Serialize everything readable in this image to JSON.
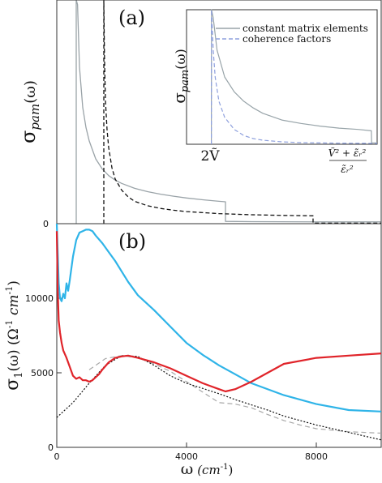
{
  "colors": {
    "panel_a_constant": "#9aa3a8",
    "panel_a_coherence": "#111111",
    "inset_constant": "#98a4a9",
    "inset_coherence": "#8ea0dd",
    "blue": "#2fb4e8",
    "red": "#e0242a",
    "gray_dashed": "#a8a8a8",
    "black_dotted": "#111111"
  },
  "chart_data": [
    {
      "panel": "(a)",
      "type": "line",
      "ylabel": "σpam(ω)",
      "ylabel_main": "σ",
      "ylabel_sub": "pam",
      "ylabel_arg": "(ω)",
      "yticks": [
        "0"
      ],
      "xlim": [
        0,
        10000
      ],
      "ylim": [
        0,
        1
      ],
      "series": [
        {
          "style": "solid-gray",
          "x": [
            600,
            601,
            640,
            700,
            800,
            900,
            1000,
            1200,
            1400,
            1600,
            1800,
            2000,
            2400,
            2800,
            3200,
            3600,
            4000,
            4500,
            5000,
            5200,
            5201,
            6000,
            8000,
            10000
          ],
          "y": [
            0,
            1,
            0.98,
            0.7,
            0.52,
            0.43,
            0.37,
            0.29,
            0.245,
            0.215,
            0.195,
            0.18,
            0.158,
            0.143,
            0.132,
            0.123,
            0.115,
            0.107,
            0.1,
            0.098,
            0.01,
            0.009,
            0.008,
            0.008
          ]
        },
        {
          "style": "dashed-black",
          "x": [
            1450,
            1451,
            1470,
            1500,
            1550,
            1600,
            1700,
            1800,
            2000,
            2200,
            2400,
            2800,
            3200,
            3600,
            4000,
            5000,
            6000,
            7000,
            7900,
            7901,
            10000
          ],
          "y": [
            0,
            1,
            0.75,
            0.55,
            0.42,
            0.34,
            0.25,
            0.2,
            0.15,
            0.12,
            0.1,
            0.08,
            0.068,
            0.06,
            0.054,
            0.045,
            0.04,
            0.037,
            0.035,
            0.002,
            0.002
          ]
        }
      ]
    },
    {
      "panel": "inset",
      "type": "line",
      "ylabel": "σpam(ω)",
      "ylabel_main": "σ",
      "ylabel_sub": "pam",
      "ylabel_arg": "(ω)",
      "xtick_left": "2Ṽ",
      "xtick_right_num": "Ṽ² + ε̃ᵣ²",
      "xtick_right_den": "ε̃ᵣ²",
      "legend": [
        "constant matrix elements",
        "coherence factors"
      ],
      "legend_position": "top-right",
      "xlim": [
        0,
        1
      ],
      "ylim": [
        0,
        1
      ],
      "series": [
        {
          "name": "constant matrix elements",
          "style": "solid",
          "x": [
            0.13,
            0.131,
            0.14,
            0.16,
            0.2,
            0.25,
            0.3,
            0.35,
            0.4,
            0.5,
            0.6,
            0.7,
            0.8,
            0.9,
            0.97,
            0.971,
            1.0
          ],
          "y": [
            0,
            1,
            0.94,
            0.7,
            0.5,
            0.39,
            0.32,
            0.27,
            0.23,
            0.18,
            0.155,
            0.135,
            0.12,
            0.11,
            0.1,
            0.01,
            0.01
          ]
        },
        {
          "name": "coherence factors",
          "style": "dashed",
          "x": [
            0.13,
            0.131,
            0.14,
            0.15,
            0.17,
            0.2,
            0.25,
            0.3,
            0.35,
            0.4,
            0.5,
            0.6,
            0.8,
            1.0
          ],
          "y": [
            0,
            1,
            0.7,
            0.5,
            0.32,
            0.2,
            0.11,
            0.065,
            0.042,
            0.03,
            0.018,
            0.012,
            0.008,
            0.006
          ]
        }
      ]
    },
    {
      "panel": "(b)",
      "type": "line",
      "ylabel": "σ1(ω) (Ω⁻¹ cm⁻¹)",
      "ylabel_main": "σ",
      "ylabel_sub": "1",
      "ylabel_rest": "(ω) (Ω",
      "ylabel_exp1": "-1",
      "ylabel_unit": " cm",
      "ylabel_exp2": "-1",
      "ylabel_close": ")",
      "xlabel": "ω (cm⁻¹)",
      "xlabel_main": "ω",
      "xlabel_unit": "(cm",
      "xlabel_exp": "-1",
      "xlabel_close": ")",
      "xlim": [
        0,
        10000
      ],
      "ylim": [
        0,
        15000
      ],
      "xticks": [
        0,
        4000,
        8000
      ],
      "xtick_labels": [
        "0",
        "4000",
        "8000"
      ],
      "yticks": [
        0,
        5000,
        10000
      ],
      "ytick_labels": [
        "0",
        "5000",
        "10000"
      ],
      "series": [
        {
          "style": "blue",
          "x": [
            0,
            30,
            60,
            100,
            150,
            200,
            250,
            300,
            350,
            400,
            500,
            600,
            700,
            800,
            900,
            1000,
            1100,
            1200,
            1400,
            1600,
            1800,
            2000,
            2200,
            2500,
            3000,
            3500,
            4000,
            4500,
            5000,
            5500,
            6000,
            7000,
            8000,
            9000,
            10000
          ],
          "y": [
            15000,
            13000,
            11000,
            10000,
            9800,
            10300,
            10000,
            11000,
            10500,
            11200,
            12800,
            13900,
            14400,
            14500,
            14600,
            14600,
            14500,
            14200,
            13700,
            13100,
            12500,
            11800,
            11100,
            10200,
            9200,
            8100,
            7000,
            6200,
            5500,
            4900,
            4300,
            3500,
            2900,
            2500,
            2400
          ]
        },
        {
          "style": "red",
          "x": [
            0,
            30,
            60,
            100,
            150,
            200,
            300,
            400,
            500,
            600,
            700,
            800,
            900,
            1000,
            1100,
            1200,
            1300,
            1400,
            1600,
            1800,
            2000,
            2200,
            2500,
            3000,
            3500,
            4000,
            4500,
            5000,
            5200,
            5500,
            6000,
            6500,
            7000,
            8000,
            9000,
            10000
          ],
          "y": [
            14500,
            10500,
            8500,
            7700,
            7000,
            6500,
            6000,
            5400,
            4800,
            4600,
            4700,
            4500,
            4500,
            4400,
            4500,
            4700,
            4900,
            5200,
            5700,
            6000,
            6100,
            6150,
            6000,
            5700,
            5300,
            4800,
            4300,
            3900,
            3750,
            3900,
            4400,
            5000,
            5600,
            6000,
            6150,
            6300
          ]
        },
        {
          "style": "gray-dashed",
          "x": [
            1000,
            1500,
            2000,
            2500,
            3000,
            3500,
            4000,
            4500,
            5000,
            5500,
            6000,
            6500,
            7000,
            7500,
            8000,
            9000,
            10000
          ],
          "y": [
            5200,
            5950,
            6150,
            6000,
            5600,
            5100,
            4400,
            3700,
            3000,
            2900,
            2650,
            2200,
            1800,
            1500,
            1250,
            1050,
            950
          ]
        },
        {
          "style": "black-dotted",
          "x": [
            0,
            500,
            1000,
            1500,
            2000,
            2500,
            3000,
            3500,
            4000,
            4500,
            5000,
            5500,
            6000,
            6500,
            7000,
            8000,
            9000,
            10000
          ],
          "y": [
            2000,
            3000,
            4300,
            5500,
            6150,
            6100,
            5500,
            4800,
            4300,
            3950,
            3600,
            3200,
            2850,
            2500,
            2100,
            1500,
            1000,
            500
          ]
        }
      ]
    }
  ]
}
